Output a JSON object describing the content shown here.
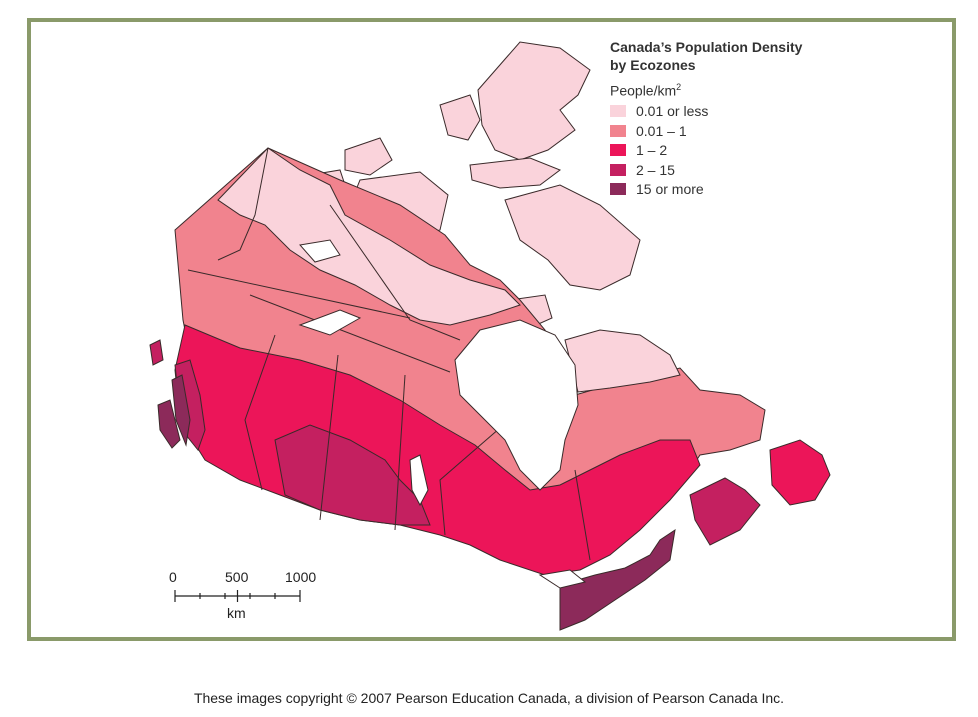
{
  "map": {
    "title": "Canada’s Population Density\nby Ecozones",
    "legend_unit": "People/km",
    "legend_unit_sup": "2",
    "legend": [
      {
        "label": "0.01 or less",
        "color": "#fad3db"
      },
      {
        "label": "0.01 – 1",
        "color": "#f1838e"
      },
      {
        "label": "1 – 2",
        "color": "#ec1559"
      },
      {
        "label": "2 – 15",
        "color": "#c42060"
      },
      {
        "label": "15 or more",
        "color": "#8c2a5a"
      }
    ],
    "scale": {
      "ticks": [
        "0",
        "500",
        "1000"
      ],
      "unit": "km"
    }
  },
  "colors": {
    "frame": "#8a9a6a",
    "border": "#3a2a2a",
    "water": "#ffffff"
  },
  "footer": {
    "copyright": "These images copyright © 2007 Pearson Education Canada, a division of Pearson Canada Inc."
  }
}
